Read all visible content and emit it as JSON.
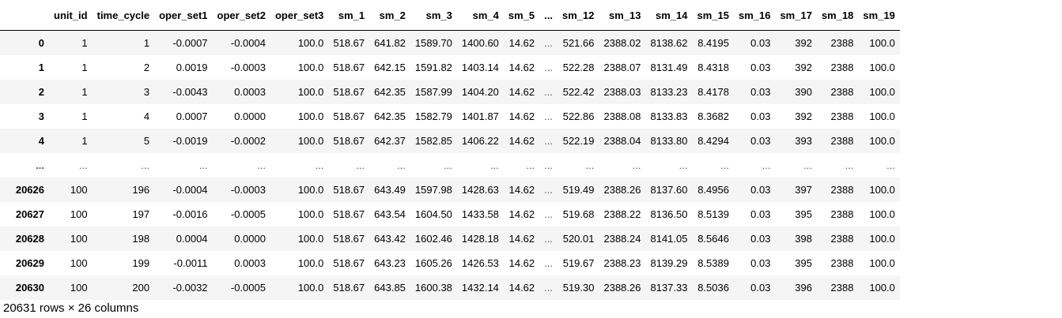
{
  "table": {
    "columns": [
      "",
      "unit_id",
      "time_cycle",
      "oper_set1",
      "oper_set2",
      "oper_set3",
      "sm_1",
      "sm_2",
      "sm_3",
      "sm_4",
      "sm_5",
      "...",
      "sm_12",
      "sm_13",
      "sm_14",
      "sm_15",
      "sm_16",
      "sm_17",
      "sm_18",
      "sm_19"
    ],
    "rows": [
      [
        "0",
        "1",
        "1",
        "-0.0007",
        "-0.0004",
        "100.0",
        "518.67",
        "641.82",
        "1589.70",
        "1400.60",
        "14.62",
        "...",
        "521.66",
        "2388.02",
        "8138.62",
        "8.4195",
        "0.03",
        "392",
        "2388",
        "100.0"
      ],
      [
        "1",
        "1",
        "2",
        "0.0019",
        "-0.0003",
        "100.0",
        "518.67",
        "642.15",
        "1591.82",
        "1403.14",
        "14.62",
        "...",
        "522.28",
        "2388.07",
        "8131.49",
        "8.4318",
        "0.03",
        "392",
        "2388",
        "100.0"
      ],
      [
        "2",
        "1",
        "3",
        "-0.0043",
        "0.0003",
        "100.0",
        "518.67",
        "642.35",
        "1587.99",
        "1404.20",
        "14.62",
        "...",
        "522.42",
        "2388.03",
        "8133.23",
        "8.4178",
        "0.03",
        "390",
        "2388",
        "100.0"
      ],
      [
        "3",
        "1",
        "4",
        "0.0007",
        "0.0000",
        "100.0",
        "518.67",
        "642.35",
        "1582.79",
        "1401.87",
        "14.62",
        "...",
        "522.86",
        "2388.08",
        "8133.83",
        "8.3682",
        "0.03",
        "392",
        "2388",
        "100.0"
      ],
      [
        "4",
        "1",
        "5",
        "-0.0019",
        "-0.0002",
        "100.0",
        "518.67",
        "642.37",
        "1582.85",
        "1406.22",
        "14.62",
        "...",
        "522.19",
        "2388.04",
        "8133.80",
        "8.4294",
        "0.03",
        "393",
        "2388",
        "100.0"
      ],
      [
        "...",
        "...",
        "...",
        "...",
        "...",
        "...",
        "...",
        "...",
        "...",
        "...",
        "...",
        "...",
        "...",
        "...",
        "...",
        "...",
        "...",
        "...",
        "...",
        "..."
      ],
      [
        "20626",
        "100",
        "196",
        "-0.0004",
        "-0.0003",
        "100.0",
        "518.67",
        "643.49",
        "1597.98",
        "1428.63",
        "14.62",
        "...",
        "519.49",
        "2388.26",
        "8137.60",
        "8.4956",
        "0.03",
        "397",
        "2388",
        "100.0"
      ],
      [
        "20627",
        "100",
        "197",
        "-0.0016",
        "-0.0005",
        "100.0",
        "518.67",
        "643.54",
        "1604.50",
        "1433.58",
        "14.62",
        "...",
        "519.68",
        "2388.22",
        "8136.50",
        "8.5139",
        "0.03",
        "395",
        "2388",
        "100.0"
      ],
      [
        "20628",
        "100",
        "198",
        "0.0004",
        "0.0000",
        "100.0",
        "518.67",
        "643.42",
        "1602.46",
        "1428.18",
        "14.62",
        "...",
        "520.01",
        "2388.24",
        "8141.05",
        "8.5646",
        "0.03",
        "398",
        "2388",
        "100.0"
      ],
      [
        "20629",
        "100",
        "199",
        "-0.0011",
        "0.0003",
        "100.0",
        "518.67",
        "643.23",
        "1605.26",
        "1426.53",
        "14.62",
        "...",
        "519.67",
        "2388.23",
        "8139.29",
        "8.5389",
        "0.03",
        "395",
        "2388",
        "100.0"
      ],
      [
        "20630",
        "100",
        "200",
        "-0.0032",
        "-0.0005",
        "100.0",
        "518.67",
        "643.85",
        "1600.38",
        "1432.14",
        "14.62",
        "...",
        "519.30",
        "2388.26",
        "8137.33",
        "8.5036",
        "0.03",
        "396",
        "2388",
        "100.0"
      ]
    ]
  },
  "footer": {
    "shape_text": "20631 rows × 26 columns"
  }
}
